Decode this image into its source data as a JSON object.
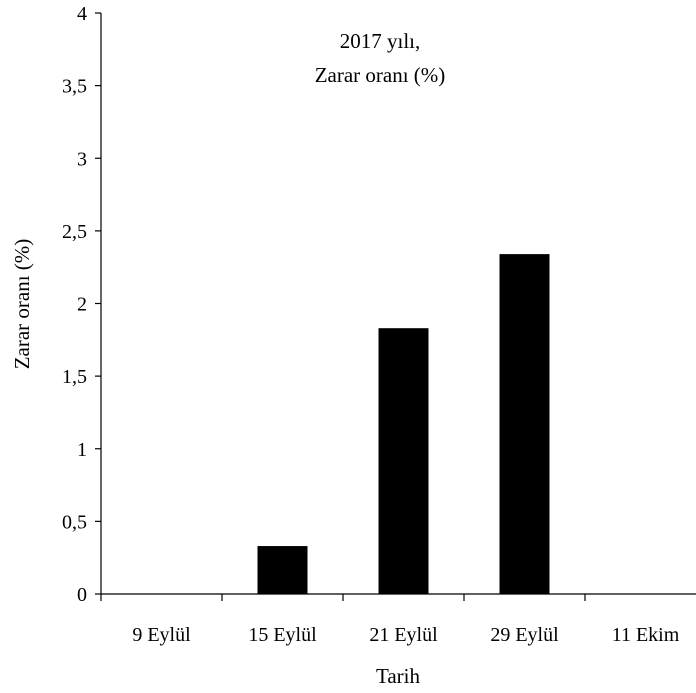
{
  "chart_data": {
    "type": "bar",
    "title": "",
    "annotation_lines": [
      "2017 yılı,",
      "Zarar oranı (%)"
    ],
    "xlabel": "Tarih",
    "ylabel": "Zarar oranı (%)",
    "categories": [
      "9 Eylül",
      "15 Eylül",
      "21 Eylül",
      "29 Eylül",
      "11 Ekim"
    ],
    "values": [
      0,
      0.33,
      1.83,
      2.34,
      0
    ],
    "ylim": [
      0,
      4
    ],
    "yticks": [
      0,
      0.5,
      1,
      1.5,
      2,
      2.5,
      3,
      3.5,
      4
    ],
    "ytick_labels": [
      "0",
      "0,5",
      "1",
      "1,5",
      "2",
      "2,5",
      "3",
      "3,5",
      "4"
    ],
    "grid": false,
    "legend": "none",
    "bar_color": "#000000",
    "axis_color": "#000000"
  }
}
